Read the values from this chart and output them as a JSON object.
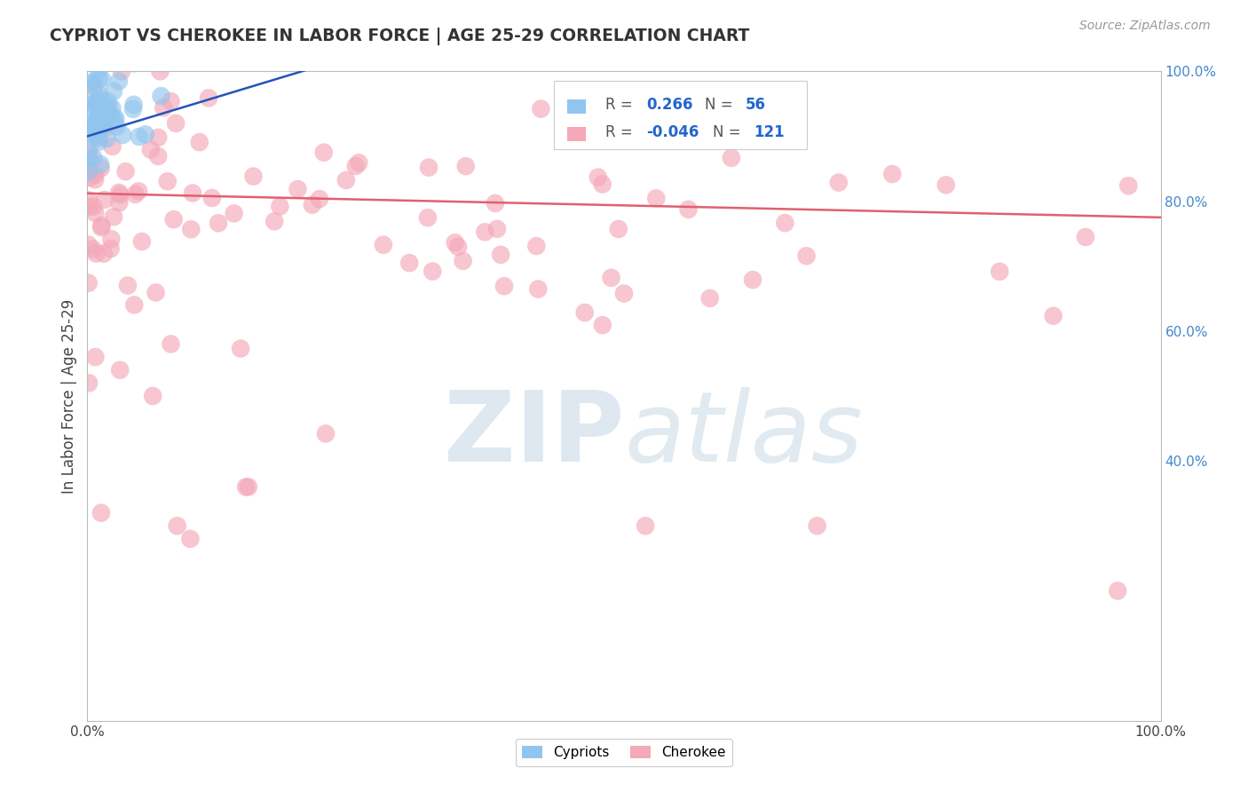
{
  "title": "CYPRIOT VS CHEROKEE IN LABOR FORCE | AGE 25-29 CORRELATION CHART",
  "source_text": "Source: ZipAtlas.com",
  "ylabel": "In Labor Force | Age 25-29",
  "xlim": [
    0.0,
    1.0
  ],
  "ylim": [
    0.0,
    1.0
  ],
  "cypriot_R": 0.266,
  "cypriot_N": 56,
  "cherokee_R": -0.046,
  "cherokee_N": 121,
  "cypriot_color": "#92C5EE",
  "cherokee_color": "#F4A8B8",
  "cypriot_line_color": "#2255BB",
  "cherokee_line_color": "#E06070",
  "background_color": "#FFFFFF",
  "grid_color": "#CCCCCC",
  "title_color": "#333333",
  "source_color": "#999999",
  "right_tick_color": "#4488CC",
  "watermark_zip": "ZIP",
  "watermark_atlas": "atlas",
  "legend_label_cypriot": "Cypriots",
  "legend_label_cherokee": "Cherokee"
}
